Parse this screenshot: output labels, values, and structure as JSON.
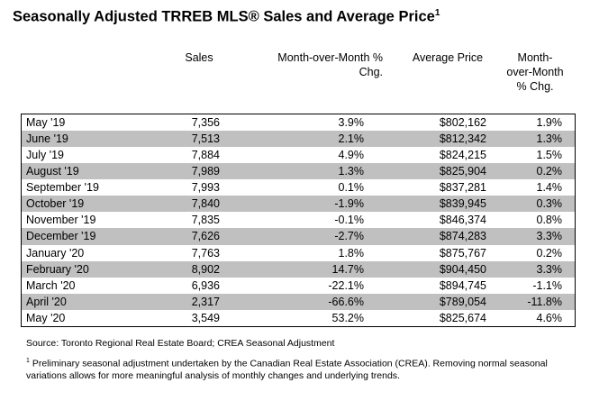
{
  "title": {
    "text": "Seasonally Adjusted TRREB MLS® Sales and Average Price",
    "footnote_mark": "1"
  },
  "headers": {
    "sales": "Sales",
    "mom_sales": "Month-over-Month % Chg.",
    "average_price": "Average Price",
    "mom_price": "Month-over-Month % Chg."
  },
  "rows": [
    {
      "month": "May '19",
      "sales": "7,356",
      "sales_chg": "3.9%",
      "avg_price": "$802,162",
      "price_chg": "1.9%"
    },
    {
      "month": "June '19",
      "sales": "7,513",
      "sales_chg": "2.1%",
      "avg_price": "$812,342",
      "price_chg": "1.3%"
    },
    {
      "month": "July '19",
      "sales": "7,884",
      "sales_chg": "4.9%",
      "avg_price": "$824,215",
      "price_chg": "1.5%"
    },
    {
      "month": "August '19",
      "sales": "7,989",
      "sales_chg": "1.3%",
      "avg_price": "$825,904",
      "price_chg": "0.2%"
    },
    {
      "month": "September '19",
      "sales": "7,993",
      "sales_chg": "0.1%",
      "avg_price": "$837,281",
      "price_chg": "1.4%"
    },
    {
      "month": "October '19",
      "sales": "7,840",
      "sales_chg": "-1.9%",
      "avg_price": "$839,945",
      "price_chg": "0.3%"
    },
    {
      "month": "November '19",
      "sales": "7,835",
      "sales_chg": "-0.1%",
      "avg_price": "$846,374",
      "price_chg": "0.8%"
    },
    {
      "month": "December '19",
      "sales": "7,626",
      "sales_chg": "-2.7%",
      "avg_price": "$874,283",
      "price_chg": "3.3%"
    },
    {
      "month": "January '20",
      "sales": "7,763",
      "sales_chg": "1.8%",
      "avg_price": "$875,767",
      "price_chg": "0.2%"
    },
    {
      "month": "February '20",
      "sales": "8,902",
      "sales_chg": "14.7%",
      "avg_price": "$904,450",
      "price_chg": "3.3%"
    },
    {
      "month": "March '20",
      "sales": "6,936",
      "sales_chg": "-22.1%",
      "avg_price": "$894,745",
      "price_chg": "-1.1%"
    },
    {
      "month": "April '20",
      "sales": "2,317",
      "sales_chg": "-66.6%",
      "avg_price": "$789,054",
      "price_chg": "-11.8%"
    },
    {
      "month": "May '20",
      "sales": "3,549",
      "sales_chg": "53.2%",
      "avg_price": "$825,674",
      "price_chg": "4.6%"
    }
  ],
  "colors": {
    "shade": "#c0c0c0"
  },
  "source": "Source: Toronto Regional Real Estate Board; CREA Seasonal Adjustment",
  "footnote": {
    "mark": "1",
    "text": "Preliminary seasonal adjustment undertaken by the Canadian Real Estate Association (CREA).  Removing normal seasonal variations allows for more meaningful analysis of monthly changes and underlying trends."
  }
}
